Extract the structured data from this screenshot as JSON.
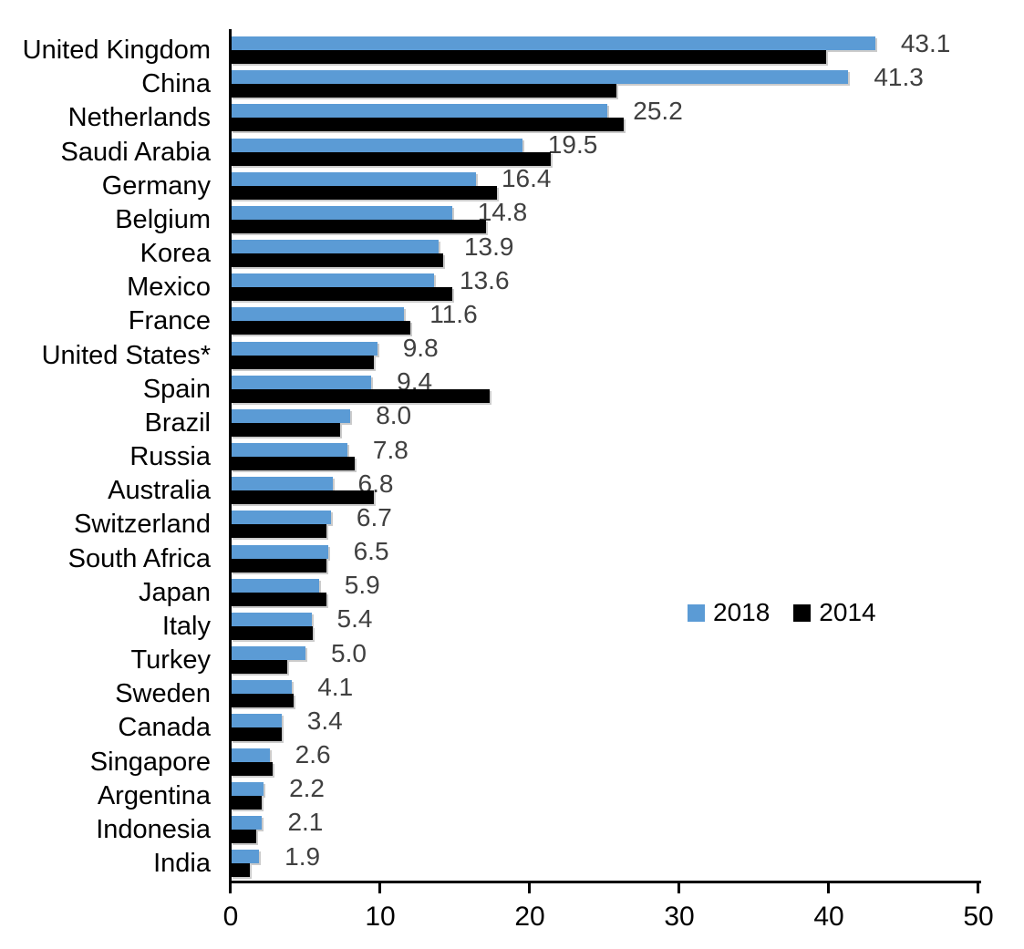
{
  "chart_data": {
    "type": "bar",
    "orientation": "horizontal-grouped",
    "title": "",
    "xlabel": "",
    "ylabel": "",
    "categories": [
      "United Kingdom",
      "China",
      "Netherlands",
      "Saudi Arabia",
      "Germany",
      "Belgium",
      "Korea",
      "Mexico",
      "France",
      "United States*",
      "Spain",
      "Brazil",
      "Russia",
      "Australia",
      "Switzerland",
      "South Africa",
      "Japan",
      "Italy",
      "Turkey",
      "Sweden",
      "Canada",
      "Singapore",
      "Argentina",
      "Indonesia",
      "India"
    ],
    "series": [
      {
        "name": "2018",
        "color": "#5B9BD5",
        "data_labels_shown": true,
        "values": [
          43.1,
          41.3,
          25.2,
          19.5,
          16.4,
          14.8,
          13.9,
          13.6,
          11.6,
          9.8,
          9.4,
          8.0,
          7.8,
          6.8,
          6.7,
          6.5,
          5.9,
          5.4,
          5.0,
          4.1,
          3.4,
          2.6,
          2.2,
          2.1,
          1.9
        ]
      },
      {
        "name": "2014",
        "color": "#000000",
        "data_labels_shown": false,
        "values": [
          39.8,
          25.8,
          26.3,
          21.4,
          17.8,
          17.1,
          14.2,
          14.8,
          12.0,
          9.6,
          17.3,
          7.3,
          8.3,
          9.6,
          6.4,
          6.4,
          6.4,
          5.5,
          3.8,
          4.2,
          3.4,
          2.8,
          2.1,
          1.7,
          1.3
        ]
      }
    ],
    "data_labels": [
      "43.1",
      "41.3",
      "25.2",
      "19.5",
      "16.4",
      "14.8",
      "13.9",
      "13.6",
      "11.6",
      "9.8",
      "9.4",
      "8.0",
      "7.8",
      "6.8",
      "6.7",
      "6.5",
      "5.9",
      "5.4",
      "5.0",
      "4.1",
      "3.4",
      "2.6",
      "2.2",
      "2.1",
      "1.9"
    ],
    "data_label_color": "#404040",
    "xlim": [
      0,
      50
    ],
    "xticks": [
      0,
      10,
      20,
      30,
      40,
      50
    ],
    "grid": false,
    "axis_color": "#000000",
    "text_color": "#000000",
    "legend": {
      "position": "middle-right",
      "items": [
        {
          "label": "2018",
          "color": "#5B9BD5"
        },
        {
          "label": "2014",
          "color": "#000000"
        }
      ]
    }
  }
}
